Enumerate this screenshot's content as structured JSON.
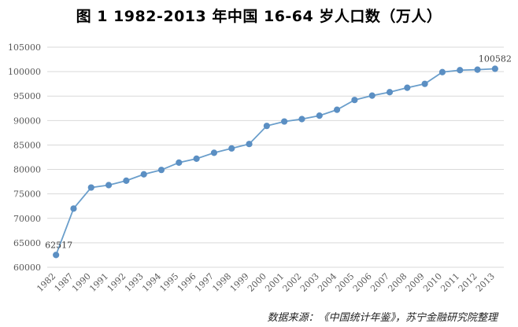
{
  "title": "图 1    1982-2013 年中国 16-64 岁人口数（万人）",
  "source": "数据来源：《中国统计年鉴》，苏宁金融研究院整理",
  "chart_data": {
    "type": "line",
    "title": "图 1    1982-2013 年中国 16-64 岁人口数（万人）",
    "xlabel": "",
    "ylabel": "",
    "categories": [
      "1982",
      "1987",
      "1990",
      "1991",
      "1992",
      "1993",
      "1994",
      "1995",
      "1996",
      "1997",
      "1998",
      "1999",
      "2000",
      "2001",
      "2002",
      "2003",
      "2004",
      "2005",
      "2006",
      "2007",
      "2008",
      "2009",
      "2010",
      "2011",
      "2012",
      "2013"
    ],
    "series": [
      {
        "values": [
          62517,
          72000,
          76300,
          76800,
          77700,
          79000,
          79900,
          81400,
          82200,
          83400,
          84300,
          85200,
          88900,
          89800,
          90300,
          91000,
          92200,
          94200,
          95100,
          95800,
          96700,
          97500,
          99900,
          100300,
          100400,
          100582
        ]
      }
    ],
    "data_labels": [
      {
        "index": 0,
        "text": "62517"
      },
      {
        "index": 25,
        "text": "100582"
      }
    ],
    "ylim": [
      60000,
      105000
    ],
    "yticks": [
      60000,
      65000,
      70000,
      75000,
      80000,
      85000,
      90000,
      95000,
      100000,
      105000
    ],
    "grid": true,
    "legend": "none",
    "colors": {
      "line": "#6a9ecb",
      "marker": "#5b8fc3",
      "grid": "#d9d9d9",
      "axis_text": "#595959"
    }
  }
}
